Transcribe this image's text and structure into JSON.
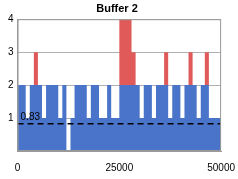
{
  "chart_data": {
    "type": "area",
    "title": "Buffer 2",
    "x": [
      0,
      1000,
      2000,
      3000,
      4000,
      5000,
      6000,
      7000,
      8000,
      9000,
      10000,
      11000,
      12000,
      13000,
      14000,
      15000,
      16000,
      17000,
      18000,
      19000,
      20000,
      21000,
      22000,
      23000,
      24000,
      25000,
      26000,
      27000,
      28000,
      29000,
      30000,
      31000,
      32000,
      33000,
      34000,
      35000,
      36000,
      37000,
      38000,
      39000,
      40000,
      41000,
      42000,
      43000,
      44000,
      45000,
      46000,
      47000,
      48000,
      49000,
      50000
    ],
    "series": [
      {
        "color": "#4a74c9",
        "values": [
          2,
          2,
          1,
          2,
          2,
          2,
          1,
          2,
          2,
          2,
          1,
          2,
          0,
          1,
          2,
          2,
          2,
          1,
          2,
          2,
          1,
          1,
          2,
          1,
          1,
          2,
          2,
          2,
          2,
          2,
          1,
          2,
          2,
          1,
          2,
          2,
          2,
          1,
          2,
          2,
          1,
          2,
          2,
          2,
          1,
          2,
          2,
          1,
          1,
          1,
          1
        ]
      },
      {
        "color": "#e05a5a",
        "values": [
          2,
          2,
          1,
          2,
          3,
          2,
          1,
          2,
          2,
          2,
          1,
          2,
          0,
          1,
          2,
          2,
          2,
          1,
          2,
          2,
          1,
          1,
          2,
          1,
          1,
          4,
          4,
          4,
          3,
          2,
          1,
          2,
          2,
          1,
          2,
          2,
          3,
          1,
          2,
          2,
          1,
          2,
          3,
          2,
          1,
          2,
          3,
          1,
          1,
          1,
          1
        ]
      }
    ],
    "reference_line": {
      "value": 0.83,
      "label": "0.83"
    },
    "xlim": [
      0,
      50000
    ],
    "xticks": [
      0,
      25000,
      50000
    ],
    "ylim": [
      0,
      4
    ],
    "yticks": [
      1,
      2,
      3,
      4
    ],
    "grid": true
  }
}
